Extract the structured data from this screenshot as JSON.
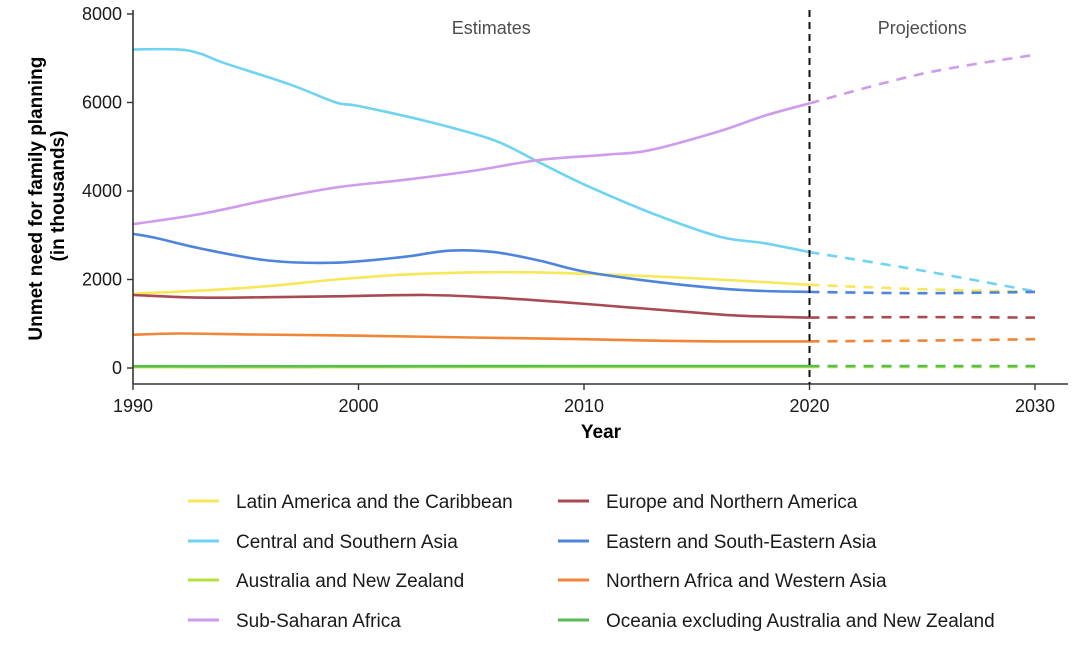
{
  "chart_data": {
    "type": "line",
    "xlabel": "Year",
    "ylabel_lines": [
      "Unmet need for family planning",
      "(in thousands)"
    ],
    "xlim": [
      1990,
      2030
    ],
    "ylim": [
      0,
      8000
    ],
    "x_ticks": [
      1990,
      2000,
      2010,
      2020,
      2030
    ],
    "y_ticks": [
      0,
      2000,
      4000,
      6000,
      8000
    ],
    "divider_year": 2020,
    "period_labels": {
      "estimates": "Estimates",
      "projections": "Projections"
    },
    "legend_position": "bottom",
    "series": [
      {
        "name": "Latin America and the Caribbean",
        "color": "#f7e859",
        "estimates": [
          [
            1990,
            1680
          ],
          [
            1993,
            1750
          ],
          [
            1996,
            1850
          ],
          [
            1999,
            2000
          ],
          [
            2002,
            2110
          ],
          [
            2005,
            2160
          ],
          [
            2008,
            2160
          ],
          [
            2011,
            2110
          ],
          [
            2014,
            2050
          ],
          [
            2017,
            1970
          ],
          [
            2020,
            1880
          ]
        ],
        "projections": [
          [
            2020,
            1880
          ],
          [
            2025,
            1780
          ],
          [
            2030,
            1720
          ]
        ]
      },
      {
        "name": "Europe and Northern America",
        "color": "#a94a53",
        "estimates": [
          [
            1990,
            1650
          ],
          [
            1993,
            1590
          ],
          [
            1996,
            1600
          ],
          [
            1999,
            1620
          ],
          [
            2003,
            1650
          ],
          [
            2006,
            1590
          ],
          [
            2009,
            1490
          ],
          [
            2012,
            1370
          ],
          [
            2015,
            1250
          ],
          [
            2017,
            1180
          ],
          [
            2020,
            1140
          ]
        ],
        "projections": [
          [
            2020,
            1140
          ],
          [
            2025,
            1150
          ],
          [
            2030,
            1140
          ]
        ]
      },
      {
        "name": "Central and Southern Asia",
        "color": "#6fd3f2",
        "estimates": [
          [
            1990,
            7200
          ],
          [
            1992,
            7200
          ],
          [
            1993,
            7100
          ],
          [
            1994,
            6900
          ],
          [
            1997,
            6400
          ],
          [
            1999,
            6000
          ],
          [
            2000,
            5920
          ],
          [
            2003,
            5580
          ],
          [
            2006,
            5150
          ],
          [
            2008,
            4650
          ],
          [
            2010,
            4150
          ],
          [
            2013,
            3500
          ],
          [
            2016,
            2970
          ],
          [
            2018,
            2820
          ],
          [
            2020,
            2620
          ]
        ],
        "projections": [
          [
            2020,
            2620
          ],
          [
            2025,
            2200
          ],
          [
            2030,
            1730
          ]
        ]
      },
      {
        "name": "Eastern and South-Eastern Asia",
        "color": "#4e84dc",
        "estimates": [
          [
            1990,
            3030
          ],
          [
            1991,
            2940
          ],
          [
            1993,
            2700
          ],
          [
            1996,
            2430
          ],
          [
            1999,
            2380
          ],
          [
            2002,
            2510
          ],
          [
            2004,
            2650
          ],
          [
            2006,
            2620
          ],
          [
            2008,
            2430
          ],
          [
            2010,
            2180
          ],
          [
            2013,
            1960
          ],
          [
            2016,
            1800
          ],
          [
            2018,
            1740
          ],
          [
            2020,
            1720
          ]
        ],
        "projections": [
          [
            2020,
            1720
          ],
          [
            2025,
            1690
          ],
          [
            2030,
            1720
          ]
        ]
      },
      {
        "name": "Australia and New Zealand",
        "color": "#b8e03c",
        "estimates": [
          [
            1990,
            20
          ],
          [
            2000,
            20
          ],
          [
            2010,
            25
          ],
          [
            2020,
            25
          ]
        ],
        "projections": [
          [
            2020,
            25
          ],
          [
            2030,
            25
          ]
        ]
      },
      {
        "name": "Northern Africa and Western Asia",
        "color": "#f08537",
        "estimates": [
          [
            1990,
            750
          ],
          [
            1992,
            780
          ],
          [
            1995,
            760
          ],
          [
            2000,
            730
          ],
          [
            2005,
            690
          ],
          [
            2010,
            650
          ],
          [
            2013,
            620
          ],
          [
            2016,
            600
          ],
          [
            2020,
            600
          ]
        ],
        "projections": [
          [
            2020,
            600
          ],
          [
            2025,
            620
          ],
          [
            2030,
            650
          ]
        ]
      },
      {
        "name": "Sub-Saharan Africa",
        "color": "#cf9bed",
        "estimates": [
          [
            1990,
            3250
          ],
          [
            1993,
            3480
          ],
          [
            1996,
            3800
          ],
          [
            1999,
            4080
          ],
          [
            2002,
            4250
          ],
          [
            2005,
            4450
          ],
          [
            2008,
            4700
          ],
          [
            2011,
            4820
          ],
          [
            2013,
            4930
          ],
          [
            2016,
            5350
          ],
          [
            2018,
            5700
          ],
          [
            2020,
            5980
          ]
        ],
        "projections": [
          [
            2020,
            5980
          ],
          [
            2025,
            6650
          ],
          [
            2030,
            7080
          ]
        ]
      },
      {
        "name": "Oceania excluding Australia and New Zealand",
        "color": "#57bd57",
        "estimates": [
          [
            1990,
            40
          ],
          [
            2000,
            40
          ],
          [
            2010,
            45
          ],
          [
            2020,
            45
          ]
        ],
        "projections": [
          [
            2020,
            45
          ],
          [
            2030,
            45
          ]
        ]
      }
    ]
  }
}
